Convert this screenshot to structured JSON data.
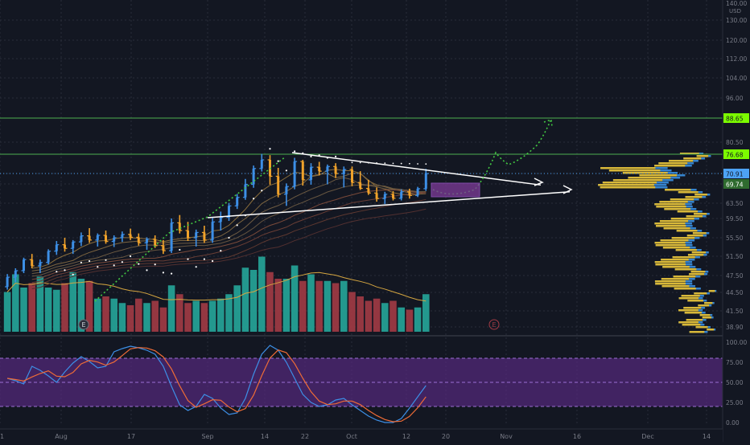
{
  "chart_data": [
    {
      "type": "candlestick",
      "name": "price",
      "currency": "USD",
      "y_axis": {
        "ticks": [
          140.0,
          130.0,
          120.0,
          112.0,
          104.0,
          96.0,
          88.65,
          80.5,
          76.68,
          70.91,
          69.74,
          63.5,
          59.5,
          55.5,
          51.5,
          47.5,
          44.5,
          41.5,
          38.9
        ],
        "label_top": "USD"
      },
      "x_axis": {
        "ticks": [
          "1",
          "Aug",
          "17",
          "Sep",
          "14",
          "22",
          "Oct",
          "12",
          "20",
          "Nov",
          "16",
          "Dec",
          "14"
        ]
      },
      "price_labels": [
        {
          "text": "88.65",
          "color": "#7CFC00"
        },
        {
          "text": "76.68",
          "color": "#7CFC00"
        },
        {
          "text": "70.91",
          "color": "#4da3f5"
        },
        {
          "text": "69.74",
          "color": "#2f6b2f"
        }
      ],
      "horizontal_lines": [
        88.65,
        76.68
      ],
      "last_price": 70.91,
      "event_markers": [
        "E",
        "E"
      ],
      "bars": [
        [
          45.5,
          47.8,
          45.0,
          47.2
        ],
        [
          47.2,
          49.0,
          46.3,
          48.5
        ],
        [
          48.5,
          51.2,
          48.0,
          50.8
        ],
        [
          50.8,
          52.0,
          49.0,
          49.5
        ],
        [
          49.5,
          50.8,
          48.0,
          50.2
        ],
        [
          50.2,
          53.0,
          49.8,
          52.6
        ],
        [
          52.6,
          54.8,
          51.8,
          54.0
        ],
        [
          54.0,
          55.5,
          52.5,
          53.2
        ],
        [
          53.2,
          55.0,
          52.0,
          54.6
        ],
        [
          54.6,
          56.6,
          53.7,
          55.9
        ],
        [
          55.9,
          57.5,
          54.4,
          55.0
        ],
        [
          55.0,
          56.4,
          53.6,
          56.0
        ],
        [
          56.0,
          57.0,
          54.2,
          54.7
        ],
        [
          54.7,
          56.0,
          53.5,
          55.5
        ],
        [
          55.5,
          56.8,
          54.6,
          56.2
        ],
        [
          56.2,
          57.4,
          55.0,
          55.6
        ],
        [
          55.6,
          56.4,
          53.8,
          54.4
        ],
        [
          54.4,
          55.6,
          52.9,
          55.2
        ],
        [
          55.2,
          56.0,
          53.3,
          53.8
        ],
        [
          53.8,
          55.0,
          52.0,
          52.7
        ],
        [
          52.7,
          59.5,
          52.2,
          58.6
        ],
        [
          58.6,
          60.4,
          56.4,
          57.0
        ],
        [
          57.0,
          58.8,
          54.8,
          55.5
        ],
        [
          55.5,
          57.2,
          53.6,
          56.6
        ],
        [
          56.6,
          58.0,
          54.4,
          55.0
        ],
        [
          55.0,
          59.6,
          54.4,
          58.8
        ],
        [
          58.8,
          61.3,
          57.0,
          59.8
        ],
        [
          59.8,
          63.6,
          59.0,
          62.8
        ],
        [
          62.8,
          66.5,
          62.0,
          65.4
        ],
        [
          65.4,
          70.3,
          64.6,
          69.6
        ],
        [
          69.6,
          73.3,
          68.5,
          72.4
        ],
        [
          72.4,
          76.8,
          71.5,
          75.0
        ],
        [
          75.0,
          76.4,
          69.5,
          70.6
        ],
        [
          70.6,
          72.6,
          65.4,
          66.4
        ],
        [
          66.4,
          69.8,
          62.8,
          68.9
        ],
        [
          68.9,
          75.6,
          68.0,
          74.5
        ],
        [
          74.5,
          75.0,
          69.2,
          70.2
        ],
        [
          70.2,
          74.0,
          69.5,
          72.8
        ],
        [
          72.8,
          74.4,
          70.7,
          71.6
        ],
        [
          71.6,
          73.6,
          69.6,
          73.0
        ],
        [
          73.0,
          74.0,
          70.4,
          70.9
        ],
        [
          70.9,
          73.0,
          68.6,
          72.1
        ],
        [
          72.1,
          73.0,
          69.0,
          69.9
        ],
        [
          69.9,
          71.6,
          67.8,
          68.3
        ],
        [
          68.3,
          70.2,
          66.2,
          66.8
        ],
        [
          66.8,
          68.6,
          64.0,
          65.0
        ],
        [
          65.0,
          67.2,
          63.3,
          66.4
        ],
        [
          66.4,
          67.4,
          64.4,
          65.1
        ],
        [
          65.1,
          68.0,
          64.4,
          67.2
        ],
        [
          67.2,
          68.2,
          65.0,
          66.0
        ],
        [
          66.0,
          68.8,
          65.5,
          68.2
        ],
        [
          68.2,
          72.3,
          67.5,
          70.9
        ]
      ]
    },
    {
      "type": "bar",
      "name": "volume",
      "values": [
        18,
        26,
        20,
        22,
        25,
        20,
        19,
        22,
        27,
        24,
        23,
        15,
        16,
        15,
        13,
        12,
        15,
        13,
        14,
        11,
        21,
        17,
        13,
        14,
        13,
        14,
        15,
        17,
        21,
        29,
        28,
        34,
        27,
        24,
        24,
        30,
        23,
        26,
        23,
        23,
        22,
        23,
        18,
        16,
        14,
        15,
        13,
        14,
        11,
        10,
        11,
        17
      ],
      "up_color": "#26a69a",
      "down_color": "#a33b45"
    },
    {
      "type": "line",
      "name": "stochastic_rsi",
      "y_axis": {
        "ticks": [
          "100.00",
          "75.00",
          "50.00",
          "25.00",
          "0.00"
        ]
      },
      "band": [
        20,
        80
      ]
    }
  ]
}
